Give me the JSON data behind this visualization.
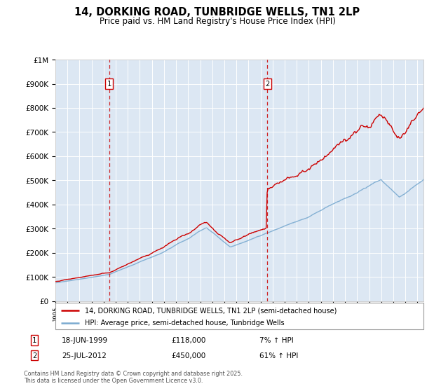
{
  "title": "14, DORKING ROAD, TUNBRIDGE WELLS, TN1 2LP",
  "subtitle": "Price paid vs. HM Land Registry's House Price Index (HPI)",
  "ylim": [
    0,
    1000000
  ],
  "legend_line1": "14, DORKING ROAD, TUNBRIDGE WELLS, TN1 2LP (semi-detached house)",
  "legend_line2": "HPI: Average price, semi-detached house, Tunbridge Wells",
  "sale1_date": "18-JUN-1999",
  "sale1_price": "£118,000",
  "sale1_hpi": "7% ↑ HPI",
  "sale2_date": "25-JUL-2012",
  "sale2_price": "£450,000",
  "sale2_hpi": "61% ↑ HPI",
  "footer": "Contains HM Land Registry data © Crown copyright and database right 2025.\nThis data is licensed under the Open Government Licence v3.0.",
  "red_color": "#cc0000",
  "blue_color": "#7aaad0",
  "dashed_color": "#cc0000",
  "sale1_year": 1999.46,
  "sale2_year": 2012.56,
  "sale1_price_val": 118000,
  "sale2_price_val": 450000,
  "hpi_scale1": 1.07,
  "hpi_scale2": 1.61
}
